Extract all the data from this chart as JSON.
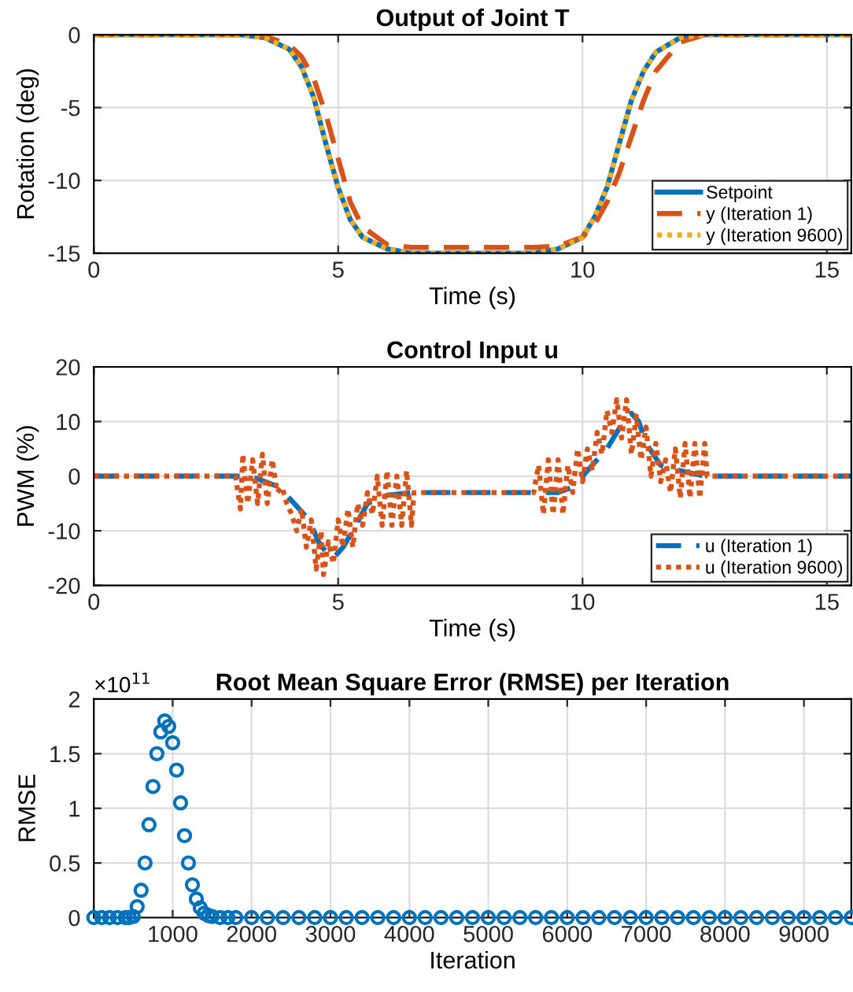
{
  "chart_data": [
    {
      "type": "line",
      "title": "Output of Joint T",
      "xlabel": "Time (s)",
      "ylabel": "Rotation (deg)",
      "xlim": [
        0,
        15.5
      ],
      "xticks": [
        0,
        5,
        10,
        15
      ],
      "ylim": [
        -15,
        0
      ],
      "yticks": [
        -15,
        -10,
        -5,
        0
      ],
      "grid": true,
      "legend": "bottom right",
      "series": [
        {
          "name": "Setpoint",
          "color": "#0072bd",
          "line_style": "solid",
          "x": [
            0,
            3,
            3.5,
            4,
            4.25,
            4.5,
            4.75,
            5,
            5.25,
            5.5,
            6,
            6.5,
            9,
            9.5,
            10,
            10.25,
            10.5,
            10.75,
            11,
            11.25,
            11.5,
            12,
            12.5,
            15.5
          ],
          "values": [
            0,
            0,
            -0.2,
            -1,
            -2.2,
            -4.3,
            -7.5,
            -10.5,
            -12.7,
            -13.9,
            -14.7,
            -15,
            -15,
            -14.7,
            -13.9,
            -12.5,
            -10.5,
            -7.5,
            -4.5,
            -2.5,
            -1.2,
            -0.2,
            0,
            0
          ]
        },
        {
          "name": "y (Iteration 1)",
          "color": "#d95319",
          "line_style": "dashed",
          "x": [
            0,
            3,
            3.5,
            4,
            4.25,
            4.5,
            4.75,
            5,
            5.25,
            5.5,
            6,
            6.5,
            9,
            9.5,
            10,
            10.25,
            10.5,
            10.75,
            11,
            11.25,
            11.5,
            12,
            12.5,
            15.5
          ],
          "values": [
            0,
            0,
            -0.1,
            -0.7,
            -1.5,
            -3,
            -5.5,
            -8.5,
            -11.5,
            -13.2,
            -14.4,
            -14.6,
            -14.6,
            -14.5,
            -13.9,
            -13,
            -11.5,
            -9.5,
            -7,
            -4.5,
            -2.5,
            -0.5,
            0,
            0
          ]
        },
        {
          "name": "y (Iteration 9600)",
          "color": "#edb120",
          "line_style": "dotted",
          "x": [
            0,
            3,
            3.5,
            4,
            4.25,
            4.5,
            4.75,
            5,
            5.25,
            5.5,
            6,
            6.5,
            9,
            9.5,
            10,
            10.25,
            10.5,
            10.75,
            11,
            11.25,
            11.5,
            12,
            12.5,
            15.5
          ],
          "values": [
            0,
            0,
            -0.2,
            -1,
            -2.2,
            -4.3,
            -7.5,
            -10.5,
            -12.7,
            -13.9,
            -14.7,
            -15,
            -15,
            -14.7,
            -13.9,
            -12.5,
            -10.5,
            -7.5,
            -4.5,
            -2.5,
            -1.2,
            -0.2,
            0,
            0
          ]
        }
      ]
    },
    {
      "type": "line",
      "title": "Control Input u",
      "xlabel": "Time (s)",
      "ylabel": "PWM (%)",
      "xlim": [
        0,
        15.5
      ],
      "xticks": [
        0,
        5,
        10,
        15
      ],
      "ylim": [
        -20,
        20
      ],
      "yticks": [
        -20,
        -10,
        0,
        10,
        20
      ],
      "grid": true,
      "legend": "bottom right",
      "series": [
        {
          "name": "u (Iteration 1)",
          "color": "#0072bd",
          "line_style": "dashed",
          "x": [
            0,
            3.2,
            3.5,
            3.8,
            4,
            4.2,
            4.4,
            4.6,
            4.8,
            4.9,
            5.1,
            5.3,
            5.6,
            6,
            6.5,
            9.5,
            9.8,
            10,
            10.3,
            10.5,
            10.7,
            10.9,
            11,
            11.15,
            11.3,
            11.6,
            12,
            12.5,
            15.5
          ],
          "values": [
            0,
            0,
            -1,
            -2,
            -4,
            -6,
            -8,
            -12,
            -14.5,
            -15,
            -13,
            -10,
            -5,
            -3.5,
            -3,
            -3,
            -2,
            0,
            3,
            5,
            8,
            11,
            11.5,
            10,
            6,
            2,
            1,
            0,
            0
          ]
        },
        {
          "name": "u (Iteration 9600)",
          "color": "#d95319",
          "line_style": "dotted",
          "x": [
            0,
            2.9,
            3.0,
            3.05,
            3.15,
            3.25,
            3.35,
            3.45,
            3.55,
            3.65,
            3.75,
            3.85,
            3.95,
            4.05,
            4.15,
            4.25,
            4.35,
            4.45,
            4.55,
            4.65,
            4.7,
            4.8,
            4.9,
            5.0,
            5.1,
            5.2,
            5.3,
            5.4,
            5.5,
            5.6,
            5.7,
            5.8,
            5.9,
            6.0,
            6.1,
            6.2,
            6.3,
            6.4,
            6.5,
            6.55,
            9.0,
            9.1,
            9.2,
            9.3,
            9.4,
            9.5,
            9.6,
            9.7,
            9.8,
            9.9,
            10.0,
            10.1,
            10.2,
            10.3,
            10.4,
            10.5,
            10.6,
            10.7,
            10.8,
            10.9,
            11.0,
            11.1,
            11.2,
            11.3,
            11.4,
            11.5,
            11.6,
            11.7,
            11.8,
            11.9,
            12.0,
            12.1,
            12.2,
            12.3,
            12.4,
            12.5,
            12.55,
            15.5
          ],
          "values": [
            0,
            0,
            -6,
            4,
            -5,
            3,
            -5,
            4,
            -5,
            3,
            -3,
            -2,
            -5,
            -7,
            -10,
            -6,
            -13,
            -8,
            -17,
            -10,
            -18,
            -12,
            -16,
            -8,
            -13,
            -6,
            -13,
            -5,
            -9,
            -3,
            -7,
            0,
            -9,
            1,
            -9,
            0,
            -9,
            1,
            -9,
            -3,
            -3,
            2,
            -7,
            3,
            -7,
            3,
            -7,
            2,
            -3,
            5,
            -1,
            5,
            1,
            8,
            4,
            12,
            8,
            14,
            7,
            14,
            4,
            11,
            3,
            9,
            0,
            6,
            -1,
            3,
            -3,
            5,
            -4,
            6,
            -4,
            6,
            -4,
            6,
            0,
            0
          ]
        }
      ]
    },
    {
      "type": "scatter",
      "title": "Root Mean Square Error (RMSE) per Iteration",
      "xlabel": "Iteration",
      "ylabel": "RMSE",
      "xlim": [
        1,
        9600
      ],
      "xticks": [
        1000,
        2000,
        3000,
        4000,
        5000,
        6000,
        7000,
        8000,
        9000
      ],
      "ylim": [
        0,
        2
      ],
      "yticks": [
        0,
        0.5,
        1,
        1.5,
        2
      ],
      "grid": true,
      "marker": "circle",
      "annotations": [
        "×10$^{11}$"
      ],
      "series": [
        {
          "color": "#0072bd",
          "x": [
            1,
            100,
            200,
            300,
            400,
            450,
            500,
            550,
            600,
            650,
            700,
            750,
            800,
            850,
            900,
            950,
            1000,
            1050,
            1100,
            1150,
            1200,
            1250,
            1300,
            1350,
            1400,
            1450,
            1500,
            1600,
            1700,
            1800,
            2000,
            2200,
            2400,
            2600,
            2800,
            3000,
            3200,
            3400,
            3600,
            3800,
            4000,
            4200,
            4400,
            4600,
            4800,
            5000,
            5200,
            5400,
            5600,
            5800,
            6000,
            6200,
            6400,
            6600,
            6800,
            7000,
            7200,
            7400,
            7600,
            7800,
            8000,
            8200,
            8400,
            8600,
            8800,
            9000,
            9200,
            9400,
            9600
          ],
          "values": [
            0,
            0,
            0,
            0,
            0,
            0,
            0.01,
            0.1,
            0.25,
            0.5,
            0.85,
            1.2,
            1.5,
            1.7,
            1.8,
            1.75,
            1.6,
            1.35,
            1.05,
            0.75,
            0.5,
            0.3,
            0.17,
            0.09,
            0.04,
            0.02,
            0.01,
            0,
            0,
            0,
            0,
            0,
            0,
            0,
            0,
            0,
            0,
            0,
            0,
            0,
            0,
            0,
            0,
            0,
            0,
            0,
            0,
            0,
            0,
            0,
            0,
            0,
            0,
            0,
            0,
            0,
            0,
            0,
            0,
            0,
            0,
            0,
            0,
            0,
            0,
            0,
            0,
            0,
            0
          ]
        }
      ]
    }
  ]
}
